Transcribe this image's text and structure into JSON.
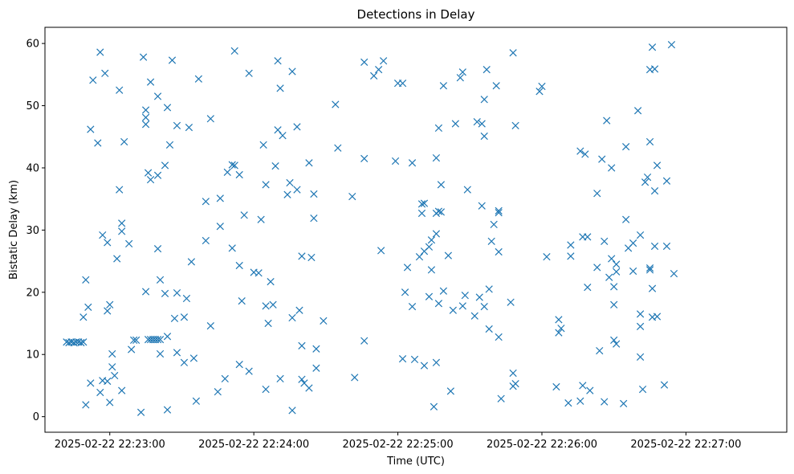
{
  "chart_data": {
    "type": "scatter",
    "title": "Detections in Delay",
    "xlabel": "Time (UTC)",
    "ylabel": "Bistatic Delay (km)",
    "marker": "x",
    "color": "#1f77b4",
    "grid": false,
    "x_ticks": [
      "2025-02-22 22:23:00",
      "2025-02-22 22:24:00",
      "2025-02-22 22:25:00",
      "2025-02-22 22:26:00",
      "2025-02-22 22:27:00"
    ],
    "y_ticks": [
      "0",
      "10",
      "20",
      "30",
      "40",
      "50",
      "60"
    ],
    "xlim": [
      "2025-02-22 22:22:33",
      "2025-02-22 22:27:42"
    ],
    "ylim": [
      -2.5,
      62.6
    ],
    "points": [
      [
        "2025-02-22 22:22:42",
        12.0
      ],
      [
        "2025-02-22 22:22:43",
        11.9
      ],
      [
        "2025-02-22 22:22:44",
        12.0
      ],
      [
        "2025-02-22 22:22:45",
        11.9
      ],
      [
        "2025-02-22 22:22:46",
        12.0
      ],
      [
        "2025-02-22 22:22:47",
        12.0
      ],
      [
        "2025-02-22 22:22:48",
        11.9
      ],
      [
        "2025-02-22 22:22:49",
        12.0
      ],
      [
        "2025-02-22 22:22:49",
        16.0
      ],
      [
        "2025-02-22 22:22:50",
        22.0
      ],
      [
        "2025-02-22 22:22:50",
        1.9
      ],
      [
        "2025-02-22 22:22:51",
        17.6
      ],
      [
        "2025-02-22 22:22:52",
        5.4
      ],
      [
        "2025-02-22 22:22:52",
        46.2
      ],
      [
        "2025-02-22 22:22:53",
        54.1
      ],
      [
        "2025-02-22 22:22:55",
        44.0
      ],
      [
        "2025-02-22 22:22:56",
        3.9
      ],
      [
        "2025-02-22 22:22:56",
        58.6
      ],
      [
        "2025-02-22 22:22:57",
        5.8
      ],
      [
        "2025-02-22 22:22:57",
        29.2
      ],
      [
        "2025-02-22 22:22:58",
        55.2
      ],
      [
        "2025-02-22 22:22:59",
        5.7
      ],
      [
        "2025-02-22 22:22:59",
        17.0
      ],
      [
        "2025-02-22 22:22:59",
        28.0
      ],
      [
        "2025-02-22 22:23:00",
        2.3
      ],
      [
        "2025-02-22 22:23:00",
        18.0
      ],
      [
        "2025-02-22 22:23:01",
        8.0
      ],
      [
        "2025-02-22 22:23:01",
        10.1
      ],
      [
        "2025-02-22 22:23:02",
        6.6
      ],
      [
        "2025-02-22 22:23:03",
        25.4
      ],
      [
        "2025-02-22 22:23:04",
        52.5
      ],
      [
        "2025-02-22 22:23:04",
        36.5
      ],
      [
        "2025-02-22 22:23:05",
        4.2
      ],
      [
        "2025-02-22 22:23:05",
        29.8
      ],
      [
        "2025-02-22 22:23:05",
        31.1
      ],
      [
        "2025-02-22 22:23:06",
        44.2
      ],
      [
        "2025-02-22 22:23:08",
        27.8
      ],
      [
        "2025-02-22 22:23:09",
        10.8
      ],
      [
        "2025-02-22 22:23:10",
        12.3
      ],
      [
        "2025-02-22 22:23:11",
        12.3
      ],
      [
        "2025-02-22 22:23:13",
        0.7
      ],
      [
        "2025-02-22 22:23:14",
        57.8
      ],
      [
        "2025-02-22 22:23:15",
        48.1
      ],
      [
        "2025-02-22 22:23:15",
        47.0
      ],
      [
        "2025-02-22 22:23:15",
        49.3
      ],
      [
        "2025-02-22 22:23:15",
        20.1
      ],
      [
        "2025-02-22 22:23:16",
        12.4
      ],
      [
        "2025-02-22 22:23:17",
        12.4
      ],
      [
        "2025-02-22 22:23:18",
        12.4
      ],
      [
        "2025-02-22 22:23:19",
        12.4
      ],
      [
        "2025-02-22 22:23:20",
        12.4
      ],
      [
        "2025-02-22 22:23:21",
        12.4
      ],
      [
        "2025-02-22 22:23:16",
        39.2
      ],
      [
        "2025-02-22 22:23:17",
        53.8
      ],
      [
        "2025-02-22 22:23:17",
        38.1
      ],
      [
        "2025-02-22 22:23:20",
        27.0
      ],
      [
        "2025-02-22 22:23:20",
        38.8
      ],
      [
        "2025-02-22 22:23:20",
        51.5
      ],
      [
        "2025-02-22 22:23:21",
        22.0
      ],
      [
        "2025-02-22 22:23:21",
        10.1
      ],
      [
        "2025-02-22 22:23:23",
        40.4
      ],
      [
        "2025-02-22 22:23:23",
        19.8
      ],
      [
        "2025-02-22 22:23:24",
        12.9
      ],
      [
        "2025-02-22 22:23:24",
        49.7
      ],
      [
        "2025-02-22 22:23:24",
        1.1
      ],
      [
        "2025-02-22 22:23:25",
        43.7
      ],
      [
        "2025-02-22 22:23:26",
        57.3
      ],
      [
        "2025-02-22 22:23:27",
        15.8
      ],
      [
        "2025-02-22 22:23:28",
        46.8
      ],
      [
        "2025-02-22 22:23:28",
        19.9
      ],
      [
        "2025-02-22 22:23:28",
        10.3
      ],
      [
        "2025-02-22 22:23:31",
        8.7
      ],
      [
        "2025-02-22 22:23:31",
        16.0
      ],
      [
        "2025-02-22 22:23:32",
        19.0
      ],
      [
        "2025-02-22 22:23:33",
        46.5
      ],
      [
        "2025-02-22 22:23:34",
        24.9
      ],
      [
        "2025-02-22 22:23:35",
        9.4
      ],
      [
        "2025-02-22 22:23:36",
        2.5
      ],
      [
        "2025-02-22 22:23:37",
        54.3
      ],
      [
        "2025-02-22 22:23:40",
        34.6
      ],
      [
        "2025-02-22 22:23:40",
        28.3
      ],
      [
        "2025-02-22 22:23:42",
        47.9
      ],
      [
        "2025-02-22 22:23:42",
        14.6
      ],
      [
        "2025-02-22 22:23:45",
        4.0
      ],
      [
        "2025-02-22 22:23:46",
        30.6
      ],
      [
        "2025-02-22 22:23:46",
        35.1
      ],
      [
        "2025-02-22 22:23:48",
        6.1
      ],
      [
        "2025-02-22 22:23:49",
        39.3
      ],
      [
        "2025-02-22 22:23:51",
        40.5
      ],
      [
        "2025-02-22 22:23:51",
        27.1
      ],
      [
        "2025-02-22 22:23:52",
        40.4
      ],
      [
        "2025-02-22 22:23:52",
        58.8
      ],
      [
        "2025-02-22 22:23:54",
        38.9
      ],
      [
        "2025-02-22 22:23:54",
        24.3
      ],
      [
        "2025-02-22 22:23:54",
        8.4
      ],
      [
        "2025-02-22 22:23:55",
        18.6
      ],
      [
        "2025-02-22 22:23:56",
        32.4
      ],
      [
        "2025-02-22 22:23:58",
        7.3
      ],
      [
        "2025-02-22 22:23:58",
        55.2
      ],
      [
        "2025-02-22 22:24:00",
        23.2
      ],
      [
        "2025-02-22 22:24:02",
        23.1
      ],
      [
        "2025-02-22 22:24:03",
        31.7
      ],
      [
        "2025-02-22 22:24:04",
        43.7
      ],
      [
        "2025-02-22 22:24:05",
        17.8
      ],
      [
        "2025-02-22 22:24:05",
        37.3
      ],
      [
        "2025-02-22 22:24:05",
        4.4
      ],
      [
        "2025-02-22 22:24:06",
        15.0
      ],
      [
        "2025-02-22 22:24:07",
        21.7
      ],
      [
        "2025-02-22 22:24:08",
        18.0
      ],
      [
        "2025-02-22 22:24:09",
        40.3
      ],
      [
        "2025-02-22 22:24:10",
        57.2
      ],
      [
        "2025-02-22 22:24:10",
        46.1
      ],
      [
        "2025-02-22 22:24:11",
        6.1
      ],
      [
        "2025-02-22 22:24:11",
        52.8
      ],
      [
        "2025-02-22 22:24:12",
        45.2
      ],
      [
        "2025-02-22 22:24:14",
        35.7
      ],
      [
        "2025-02-22 22:24:15",
        37.6
      ],
      [
        "2025-02-22 22:24:16",
        55.5
      ],
      [
        "2025-02-22 22:24:16",
        1.0
      ],
      [
        "2025-02-22 22:24:16",
        15.9
      ],
      [
        "2025-02-22 22:24:18",
        46.6
      ],
      [
        "2025-02-22 22:24:18",
        36.5
      ],
      [
        "2025-02-22 22:24:19",
        17.1
      ],
      [
        "2025-02-22 22:24:20",
        6.0
      ],
      [
        "2025-02-22 22:24:20",
        11.4
      ],
      [
        "2025-02-22 22:24:20",
        25.8
      ],
      [
        "2025-02-22 22:24:21",
        5.4
      ],
      [
        "2025-02-22 22:24:23",
        4.6
      ],
      [
        "2025-02-22 22:24:23",
        40.8
      ],
      [
        "2025-02-22 22:24:24",
        25.6
      ],
      [
        "2025-02-22 22:24:25",
        35.8
      ],
      [
        "2025-02-22 22:24:25",
        31.9
      ],
      [
        "2025-02-22 22:24:26",
        7.8
      ],
      [
        "2025-02-22 22:24:26",
        10.9
      ],
      [
        "2025-02-22 22:24:29",
        15.4
      ],
      [
        "2025-02-22 22:24:34",
        50.2
      ],
      [
        "2025-02-22 22:24:35",
        43.2
      ],
      [
        "2025-02-22 22:24:41",
        35.4
      ],
      [
        "2025-02-22 22:24:42",
        6.3
      ],
      [
        "2025-02-22 22:24:46",
        57.0
      ],
      [
        "2025-02-22 22:24:46",
        41.5
      ],
      [
        "2025-02-22 22:24:46",
        12.2
      ],
      [
        "2025-02-22 22:24:50",
        54.8
      ],
      [
        "2025-02-22 22:24:52",
        55.8
      ],
      [
        "2025-02-22 22:24:53",
        26.7
      ],
      [
        "2025-02-22 22:24:54",
        57.2
      ],
      [
        "2025-02-22 22:24:59",
        41.1
      ],
      [
        "2025-02-22 22:25:00",
        53.6
      ],
      [
        "2025-02-22 22:25:02",
        9.3
      ],
      [
        "2025-02-22 22:25:02",
        53.6
      ],
      [
        "2025-02-22 22:25:03",
        20.0
      ],
      [
        "2025-02-22 22:25:04",
        24.0
      ],
      [
        "2025-02-22 22:25:06",
        17.7
      ],
      [
        "2025-02-22 22:25:06",
        40.8
      ],
      [
        "2025-02-22 22:25:07",
        9.2
      ],
      [
        "2025-02-22 22:25:09",
        25.7
      ],
      [
        "2025-02-22 22:25:10",
        34.2
      ],
      [
        "2025-02-22 22:25:10",
        32.7
      ],
      [
        "2025-02-22 22:25:11",
        34.3
      ],
      [
        "2025-02-22 22:25:11",
        8.2
      ],
      [
        "2025-02-22 22:25:11",
        26.6
      ],
      [
        "2025-02-22 22:25:13",
        19.3
      ],
      [
        "2025-02-22 22:25:13",
        27.3
      ],
      [
        "2025-02-22 22:25:14",
        28.4
      ],
      [
        "2025-02-22 22:25:14",
        23.6
      ],
      [
        "2025-02-22 22:25:15",
        1.6
      ],
      [
        "2025-02-22 22:25:16",
        41.6
      ],
      [
        "2025-02-22 22:25:16",
        8.7
      ],
      [
        "2025-02-22 22:25:16",
        32.7
      ],
      [
        "2025-02-22 22:25:16",
        29.4
      ],
      [
        "2025-02-22 22:25:17",
        18.2
      ],
      [
        "2025-02-22 22:25:17",
        33.0
      ],
      [
        "2025-02-22 22:25:17",
        46.4
      ],
      [
        "2025-02-22 22:25:18",
        37.3
      ],
      [
        "2025-02-22 22:25:18",
        32.9
      ],
      [
        "2025-02-22 22:25:19",
        53.2
      ],
      [
        "2025-02-22 22:25:19",
        20.2
      ],
      [
        "2025-02-22 22:25:21",
        25.9
      ],
      [
        "2025-02-22 22:25:22",
        4.1
      ],
      [
        "2025-02-22 22:25:23",
        17.1
      ],
      [
        "2025-02-22 22:25:24",
        47.1
      ],
      [
        "2025-02-22 22:25:26",
        54.5
      ],
      [
        "2025-02-22 22:25:27",
        55.4
      ],
      [
        "2025-02-22 22:25:27",
        17.8
      ],
      [
        "2025-02-22 22:25:28",
        19.5
      ],
      [
        "2025-02-22 22:25:29",
        36.5
      ],
      [
        "2025-02-22 22:25:32",
        16.2
      ],
      [
        "2025-02-22 22:25:33",
        47.4
      ],
      [
        "2025-02-22 22:25:34",
        19.2
      ],
      [
        "2025-02-22 22:25:35",
        47.1
      ],
      [
        "2025-02-22 22:25:35",
        33.9
      ],
      [
        "2025-02-22 22:25:36",
        45.1
      ],
      [
        "2025-02-22 22:25:36",
        17.7
      ],
      [
        "2025-02-22 22:25:36",
        51.0
      ],
      [
        "2025-02-22 22:25:37",
        55.8
      ],
      [
        "2025-02-22 22:25:38",
        14.1
      ],
      [
        "2025-02-22 22:25:38",
        20.5
      ],
      [
        "2025-02-22 22:25:39",
        28.2
      ],
      [
        "2025-02-22 22:25:40",
        30.9
      ],
      [
        "2025-02-22 22:25:41",
        53.2
      ],
      [
        "2025-02-22 22:25:42",
        33.1
      ],
      [
        "2025-02-22 22:25:42",
        32.8
      ],
      [
        "2025-02-22 22:25:42",
        12.8
      ],
      [
        "2025-02-22 22:25:42",
        26.5
      ],
      [
        "2025-02-22 22:25:43",
        2.9
      ],
      [
        "2025-02-22 22:25:47",
        18.4
      ],
      [
        "2025-02-22 22:25:48",
        58.5
      ],
      [
        "2025-02-22 22:25:48",
        7.0
      ],
      [
        "2025-02-22 22:25:48",
        4.9
      ],
      [
        "2025-02-22 22:25:49",
        5.3
      ],
      [
        "2025-02-22 22:25:49",
        46.8
      ],
      [
        "2025-02-22 22:25:59",
        52.3
      ],
      [
        "2025-02-22 22:26:00",
        53.1
      ],
      [
        "2025-02-22 22:26:02",
        25.7
      ],
      [
        "2025-02-22 22:26:06",
        4.8
      ],
      [
        "2025-02-22 22:26:07",
        15.6
      ],
      [
        "2025-02-22 22:26:07",
        13.5
      ],
      [
        "2025-02-22 22:26:08",
        14.2
      ],
      [
        "2025-02-22 22:26:11",
        2.2
      ],
      [
        "2025-02-22 22:26:12",
        25.8
      ],
      [
        "2025-02-22 22:26:12",
        27.6
      ],
      [
        "2025-02-22 22:26:16",
        42.7
      ],
      [
        "2025-02-22 22:26:16",
        2.5
      ],
      [
        "2025-02-22 22:26:17",
        28.9
      ],
      [
        "2025-02-22 22:26:17",
        5.0
      ],
      [
        "2025-02-22 22:26:18",
        42.2
      ],
      [
        "2025-02-22 22:26:19",
        28.9
      ],
      [
        "2025-02-22 22:26:19",
        20.8
      ],
      [
        "2025-02-22 22:26:20",
        4.2
      ],
      [
        "2025-02-22 22:26:23",
        24.0
      ],
      [
        "2025-02-22 22:26:23",
        35.9
      ],
      [
        "2025-02-22 22:26:24",
        10.6
      ],
      [
        "2025-02-22 22:26:25",
        41.4
      ],
      [
        "2025-02-22 22:26:26",
        2.4
      ],
      [
        "2025-02-22 22:26:26",
        28.2
      ],
      [
        "2025-02-22 22:26:27",
        47.6
      ],
      [
        "2025-02-22 22:26:28",
        22.4
      ],
      [
        "2025-02-22 22:26:29",
        40.0
      ],
      [
        "2025-02-22 22:26:29",
        25.4
      ],
      [
        "2025-02-22 22:26:30",
        18.0
      ],
      [
        "2025-02-22 22:26:30",
        20.9
      ],
      [
        "2025-02-22 22:26:30",
        12.3
      ],
      [
        "2025-02-22 22:26:31",
        23.3
      ],
      [
        "2025-02-22 22:26:31",
        11.7
      ],
      [
        "2025-02-22 22:26:31",
        24.5
      ],
      [
        "2025-02-22 22:26:34",
        2.1
      ],
      [
        "2025-02-22 22:26:35",
        31.7
      ],
      [
        "2025-02-22 22:26:35",
        43.4
      ],
      [
        "2025-02-22 22:26:36",
        27.1
      ],
      [
        "2025-02-22 22:26:38",
        23.4
      ],
      [
        "2025-02-22 22:26:38",
        27.9
      ],
      [
        "2025-02-22 22:26:40",
        49.2
      ],
      [
        "2025-02-22 22:26:41",
        16.5
      ],
      [
        "2025-02-22 22:26:41",
        14.5
      ],
      [
        "2025-02-22 22:26:41",
        9.6
      ],
      [
        "2025-02-22 22:26:41",
        29.2
      ],
      [
        "2025-02-22 22:26:42",
        4.4
      ],
      [
        "2025-02-22 22:26:43",
        37.7
      ],
      [
        "2025-02-22 22:26:44",
        38.5
      ],
      [
        "2025-02-22 22:26:45",
        44.2
      ],
      [
        "2025-02-22 22:26:45",
        23.6
      ],
      [
        "2025-02-22 22:26:45",
        23.9
      ],
      [
        "2025-02-22 22:26:45",
        55.8
      ],
      [
        "2025-02-22 22:26:46",
        59.4
      ],
      [
        "2025-02-22 22:26:46",
        20.6
      ],
      [
        "2025-02-22 22:26:46",
        16.0
      ],
      [
        "2025-02-22 22:26:47",
        27.4
      ],
      [
        "2025-02-22 22:26:47",
        36.3
      ],
      [
        "2025-02-22 22:26:47",
        55.9
      ],
      [
        "2025-02-22 22:26:48",
        40.4
      ],
      [
        "2025-02-22 22:26:48",
        16.1
      ],
      [
        "2025-02-22 22:26:51",
        5.1
      ],
      [
        "2025-02-22 22:26:52",
        37.9
      ],
      [
        "2025-02-22 22:26:52",
        27.4
      ],
      [
        "2025-02-22 22:26:54",
        59.8
      ],
      [
        "2025-02-22 22:26:55",
        23.0
      ]
    ]
  }
}
